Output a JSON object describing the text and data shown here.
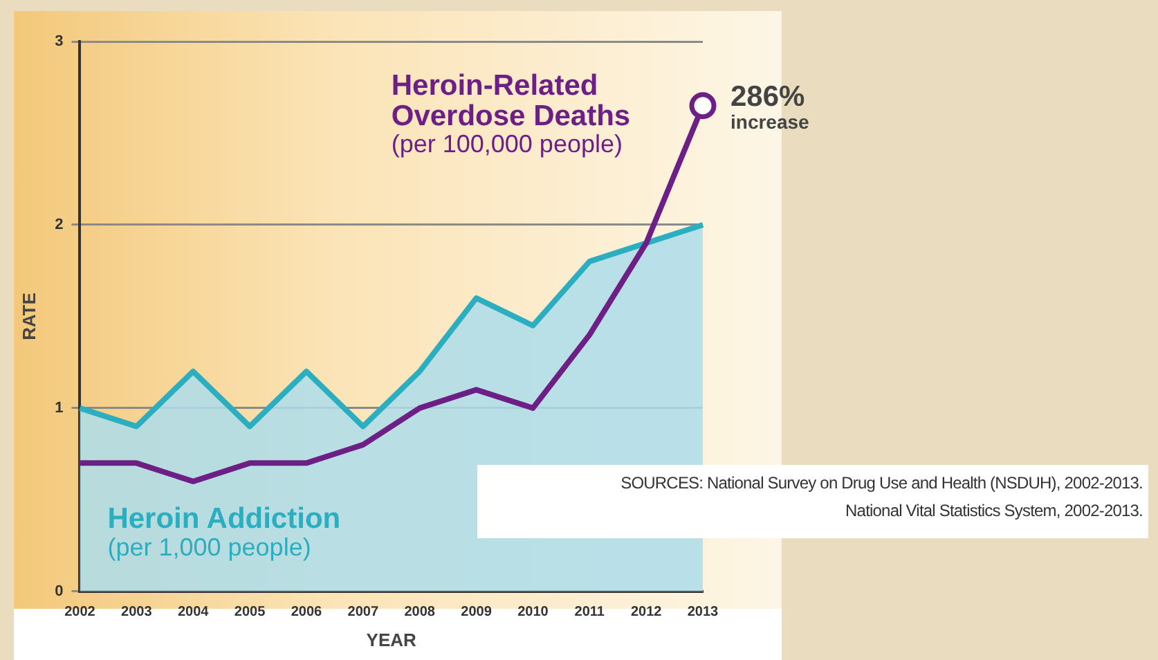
{
  "chart_data": {
    "type": "line",
    "xlabel": "YEAR",
    "ylabel": "RATE",
    "categories": [
      "2002",
      "2003",
      "2004",
      "2005",
      "2006",
      "2007",
      "2008",
      "2009",
      "2010",
      "2011",
      "2012",
      "2013"
    ],
    "series": [
      {
        "name": "Heroin Addiction\n(per 1,000 people)",
        "type": "area",
        "color": "#2aaec0",
        "values": [
          1.0,
          0.9,
          1.2,
          0.9,
          1.2,
          0.9,
          1.2,
          1.6,
          1.45,
          1.8,
          1.9,
          2.0
        ]
      },
      {
        "name": "Heroin-Related\nOverdose Deaths\n(per 100,000 people)",
        "type": "line",
        "color": "#6e1f85",
        "values": [
          0.7,
          0.7,
          0.6,
          0.7,
          0.7,
          0.8,
          1.0,
          1.1,
          1.0,
          1.4,
          1.9,
          2.65
        ]
      }
    ],
    "ylim": [
      0,
      3
    ],
    "yticks": [
      0,
      1,
      2,
      3
    ],
    "grid": "y",
    "legend": false,
    "marker": "none",
    "annotations": [
      {
        "text": "286%\nincrease",
        "x": "2013",
        "y": 2.65
      },
      "SOURCES: National Survey on Drug Use and Health (NSDUH), 2002-2013.\nNational Vital Statistics System, 2002-2013."
    ]
  }
}
